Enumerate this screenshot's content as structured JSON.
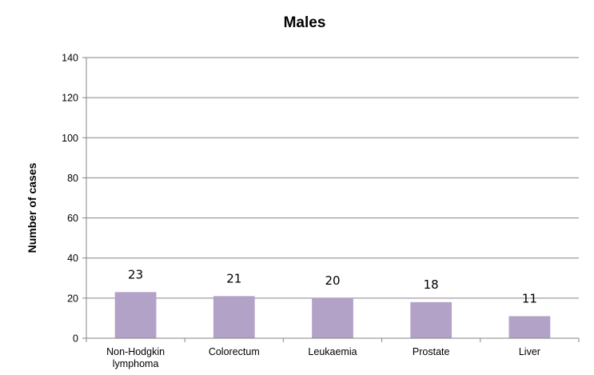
{
  "chart_data": {
    "type": "bar",
    "title": "Males",
    "xlabel": "",
    "ylabel": "Number of cases",
    "categories": [
      [
        "Non-Hodgkin",
        "lymphoma"
      ],
      [
        "Colorectum"
      ],
      [
        "Leukaemia"
      ],
      [
        "Prostate"
      ],
      [
        "Liver"
      ]
    ],
    "series": [
      {
        "values": [
          23,
          21,
          20,
          18,
          11
        ],
        "color": "#b3a2c7"
      }
    ],
    "data_labels": [
      "23",
      "21",
      "20",
      "18",
      "11"
    ],
    "ylim": [
      0,
      140
    ],
    "yticks": [
      0,
      20,
      40,
      60,
      80,
      100,
      120,
      140
    ],
    "grid": true,
    "gridline_color": "#868686",
    "axis_color": "#868686",
    "legend": "none"
  }
}
